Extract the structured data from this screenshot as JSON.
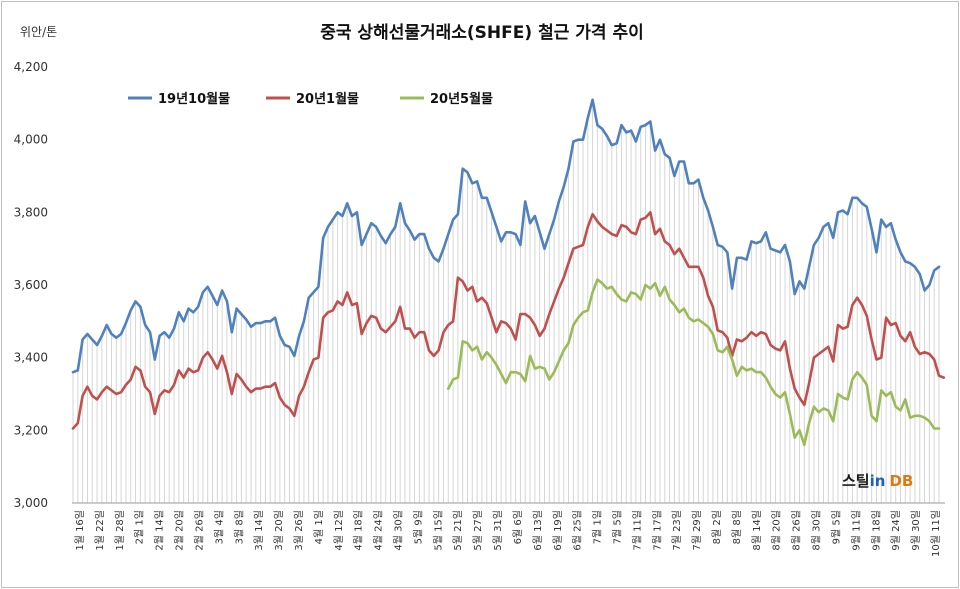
{
  "chart_data": {
    "type": "line",
    "title": "중국 상해선물거래소(SHFE) 철근 가격 추이",
    "unit_label": "위안/톤",
    "ylim": [
      3000,
      4200
    ],
    "y_ticks": [
      "3,000",
      "3,200",
      "3,400",
      "3,600",
      "3,800",
      "4,000",
      "4,200"
    ],
    "y_tick_values": [
      3000,
      3200,
      3400,
      3600,
      3800,
      4000,
      4200
    ],
    "grid": "vertical-lines",
    "legend_position": "top-left",
    "x_tick_labels": [
      "1월 16일",
      "1월 22일",
      "1월 28일",
      "2월 1일",
      "2월 14일",
      "2월 20일",
      "2월 26일",
      "3월 4일",
      "3월 8일",
      "3월 14일",
      "3월 20일",
      "3월 26일",
      "4월 1일",
      "4월 12일",
      "4월 18일",
      "4월 24일",
      "4월 30일",
      "5월 9일",
      "5월 15일",
      "5월 21일",
      "5월 27일",
      "5월 31일",
      "6월 6일",
      "6월 13일",
      "6월 19일",
      "6월 25일",
      "7월 1일",
      "7월 5일",
      "7월 11일",
      "7월 17일",
      "7월 23일",
      "7월 29일",
      "8월 2일",
      "8월 8일",
      "8월 14일",
      "8월 20일",
      "8월 26일",
      "8월 30일",
      "9월 5일",
      "9월 11일",
      "9월 18일",
      "9월 24일",
      "9월 30일",
      "10월 11일"
    ],
    "series": [
      {
        "name": "19년10월물",
        "color": "#4F81BD",
        "values": [
          3360,
          3365,
          3450,
          3465,
          3450,
          3435,
          3460,
          3490,
          3465,
          3455,
          3465,
          3495,
          3530,
          3555,
          3540,
          3490,
          3470,
          3395,
          3460,
          3470,
          3455,
          3480,
          3525,
          3500,
          3535,
          3525,
          3540,
          3580,
          3595,
          3570,
          3545,
          3585,
          3555,
          3470,
          3535,
          3520,
          3505,
          3485,
          3495,
          3495,
          3500,
          3500,
          3510,
          3460,
          3435,
          3430,
          3405,
          3460,
          3500,
          3565,
          3580,
          3595,
          3730,
          3760,
          3780,
          3800,
          3790,
          3825,
          3790,
          3800,
          3710,
          3740,
          3770,
          3760,
          3735,
          3715,
          3740,
          3760,
          3825,
          3770,
          3750,
          3725,
          3740,
          3740,
          3700,
          3675,
          3665,
          3700,
          3740,
          3780,
          3795,
          3920,
          3910,
          3880,
          3885,
          3840,
          3840,
          3800,
          3760,
          3720,
          3745,
          3745,
          3740,
          3710,
          3830,
          3770,
          3790,
          3745,
          3700,
          3740,
          3780,
          3830,
          3870,
          3920,
          3995,
          4000,
          4000,
          4060,
          4110,
          4040,
          4030,
          4010,
          3985,
          3990,
          4040,
          4020,
          4025,
          3995,
          4035,
          4040,
          4050,
          3970,
          4000,
          3960,
          3950,
          3900,
          3940,
          3940,
          3880,
          3880,
          3890,
          3840,
          3805,
          3760,
          3710,
          3705,
          3690,
          3590,
          3675,
          3675,
          3670,
          3720,
          3715,
          3720,
          3745,
          3700,
          3695,
          3690,
          3710,
          3665,
          3575,
          3610,
          3590,
          3650,
          3710,
          3730,
          3760,
          3770,
          3730,
          3800,
          3805,
          3795,
          3840,
          3840,
          3825,
          3815,
          3755,
          3690,
          3780,
          3760,
          3770,
          3725,
          3690,
          3665,
          3660,
          3650,
          3630,
          3585,
          3600,
          3640,
          3650
        ]
      },
      {
        "name": "20년1월물",
        "color": "#C0504D",
        "values": [
          3205,
          3220,
          3295,
          3320,
          3295,
          3285,
          3305,
          3320,
          3310,
          3300,
          3305,
          3325,
          3340,
          3375,
          3365,
          3320,
          3305,
          3245,
          3295,
          3310,
          3305,
          3325,
          3365,
          3345,
          3370,
          3360,
          3365,
          3400,
          3415,
          3395,
          3370,
          3405,
          3360,
          3300,
          3355,
          3340,
          3320,
          3305,
          3315,
          3315,
          3320,
          3320,
          3330,
          3290,
          3270,
          3260,
          3240,
          3295,
          3320,
          3360,
          3395,
          3400,
          3510,
          3525,
          3530,
          3555,
          3545,
          3580,
          3545,
          3550,
          3465,
          3495,
          3515,
          3510,
          3480,
          3470,
          3485,
          3500,
          3540,
          3480,
          3480,
          3455,
          3470,
          3470,
          3420,
          3405,
          3420,
          3470,
          3490,
          3500,
          3620,
          3610,
          3585,
          3595,
          3555,
          3565,
          3550,
          3510,
          3470,
          3500,
          3495,
          3480,
          3450,
          3520,
          3520,
          3510,
          3490,
          3460,
          3480,
          3520,
          3555,
          3590,
          3620,
          3660,
          3700,
          3705,
          3710,
          3760,
          3795,
          3775,
          3760,
          3750,
          3740,
          3735,
          3765,
          3760,
          3745,
          3740,
          3780,
          3785,
          3800,
          3740,
          3755,
          3720,
          3710,
          3685,
          3700,
          3675,
          3650,
          3650,
          3650,
          3620,
          3570,
          3540,
          3475,
          3470,
          3455,
          3405,
          3450,
          3445,
          3455,
          3470,
          3460,
          3470,
          3465,
          3435,
          3425,
          3420,
          3445,
          3370,
          3315,
          3290,
          3270,
          3330,
          3400,
          3410,
          3420,
          3430,
          3390,
          3490,
          3480,
          3485,
          3545,
          3565,
          3545,
          3515,
          3450,
          3395,
          3400,
          3510,
          3490,
          3495,
          3460,
          3445,
          3470,
          3430,
          3410,
          3415,
          3410,
          3395,
          3350,
          3345
        ]
      },
      {
        "name": "20년5월물",
        "color": "#9BBB59",
        "values": [
          null,
          null,
          null,
          null,
          null,
          null,
          null,
          null,
          null,
          null,
          null,
          null,
          null,
          null,
          null,
          null,
          null,
          null,
          null,
          null,
          null,
          null,
          null,
          null,
          null,
          null,
          null,
          null,
          null,
          null,
          null,
          null,
          null,
          null,
          null,
          null,
          null,
          null,
          null,
          null,
          null,
          null,
          null,
          null,
          null,
          null,
          null,
          null,
          null,
          null,
          null,
          null,
          null,
          null,
          null,
          null,
          null,
          null,
          null,
          null,
          null,
          null,
          null,
          null,
          null,
          null,
          null,
          null,
          null,
          null,
          null,
          null,
          null,
          null,
          null,
          null,
          null,
          null,
          3315,
          3340,
          3345,
          3445,
          3440,
          3420,
          3430,
          3395,
          3415,
          3400,
          3380,
          3355,
          3330,
          3360,
          3360,
          3355,
          3335,
          3405,
          3370,
          3375,
          3370,
          3340,
          3360,
          3390,
          3420,
          3440,
          3490,
          3510,
          3525,
          3530,
          3580,
          3615,
          3605,
          3590,
          3595,
          3575,
          3560,
          3555,
          3580,
          3575,
          3560,
          3600,
          3590,
          3605,
          3570,
          3595,
          3560,
          3545,
          3525,
          3535,
          3510,
          3500,
          3505,
          3495,
          3485,
          3465,
          3420,
          3415,
          3430,
          3395,
          3350,
          3375,
          3365,
          3370,
          3360,
          3360,
          3345,
          3320,
          3300,
          3290,
          3305,
          3245,
          3180,
          3200,
          3160,
          3220,
          3265,
          3250,
          3260,
          3255,
          3225,
          3300,
          3290,
          3285,
          3340,
          3360,
          3345,
          3325,
          3240,
          3225,
          3310,
          3295,
          3305,
          3265,
          3255,
          3285,
          3235,
          3240,
          3240,
          3235,
          3225,
          3205,
          3205
        ]
      }
    ]
  },
  "brand": {
    "name_ko": "스틸",
    "name_in": "in",
    "name_db": "DB"
  }
}
